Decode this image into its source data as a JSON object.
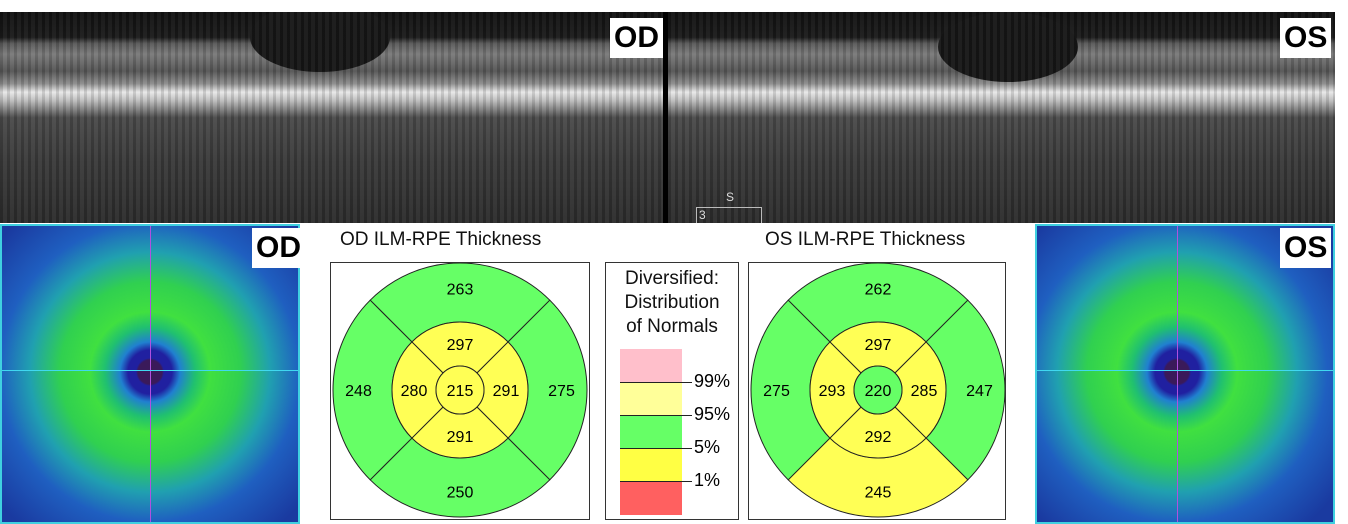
{
  "scans": {
    "od_label": "OD",
    "os_label": "OS",
    "os_marker_s": "S",
    "os_marker_3": "3"
  },
  "maps": {
    "od_label": "OD",
    "os_label": "OS"
  },
  "od_chart": {
    "title": "OD ILM-RPE Thickness",
    "center": {
      "value": "215",
      "color": "#ffff55"
    },
    "inner": [
      {
        "pos": "top",
        "value": "297",
        "color": "#ffff55"
      },
      {
        "pos": "right",
        "value": "291",
        "color": "#ffff55"
      },
      {
        "pos": "bottom",
        "value": "291",
        "color": "#ffff55"
      },
      {
        "pos": "left",
        "value": "280",
        "color": "#ffff55"
      }
    ],
    "outer": [
      {
        "pos": "top",
        "value": "263",
        "color": "#66ff66"
      },
      {
        "pos": "right",
        "value": "275",
        "color": "#66ff66"
      },
      {
        "pos": "bottom",
        "value": "250",
        "color": "#66ff66"
      },
      {
        "pos": "left",
        "value": "248",
        "color": "#66ff66"
      }
    ]
  },
  "os_chart": {
    "title": "OS ILM-RPE Thickness",
    "center": {
      "value": "220",
      "color": "#66ff66"
    },
    "inner": [
      {
        "pos": "top",
        "value": "297",
        "color": "#ffff55"
      },
      {
        "pos": "right",
        "value": "285",
        "color": "#ffff55"
      },
      {
        "pos": "bottom",
        "value": "292",
        "color": "#ffff55"
      },
      {
        "pos": "left",
        "value": "293",
        "color": "#ffff55"
      }
    ],
    "outer": [
      {
        "pos": "top",
        "value": "262",
        "color": "#66ff66"
      },
      {
        "pos": "right",
        "value": "247",
        "color": "#66ff66"
      },
      {
        "pos": "bottom",
        "value": "245",
        "color": "#ffff55"
      },
      {
        "pos": "left",
        "value": "275",
        "color": "#66ff66"
      }
    ]
  },
  "legend": {
    "title_lines": [
      "Diversified:",
      "Distribution",
      "of Normals"
    ],
    "bands": [
      {
        "color": "#ffbfcb"
      },
      {
        "color": "#ffff99"
      },
      {
        "color": "#66ff66"
      },
      {
        "color": "#ffff44"
      },
      {
        "color": "#ff6060"
      }
    ],
    "ticks": [
      "99%",
      "95%",
      "5%",
      "1%"
    ]
  }
}
